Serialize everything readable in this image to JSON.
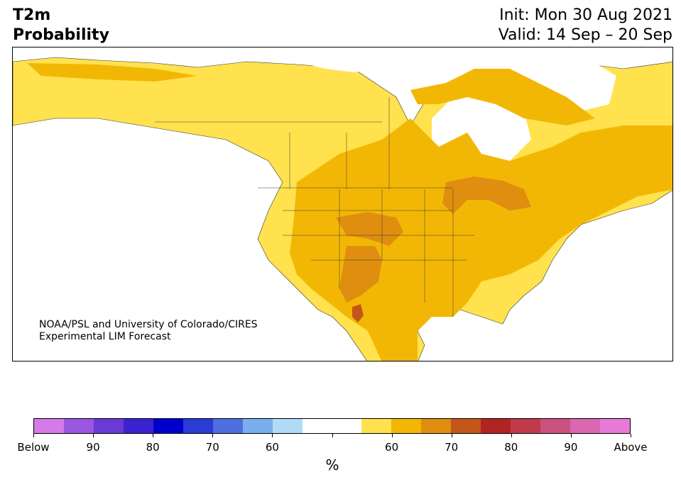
{
  "title": {
    "left_line1": "T2m",
    "left_line2": "Probability",
    "right_line1": "Init: Mon 30 Aug 2021",
    "right_line2": "Valid: 14 Sep – 20 Sep"
  },
  "credit": {
    "line1": "NOAA/PSL and University of Colorado/CIRES",
    "line2": "Experimental LIM Forecast"
  },
  "colorbar": {
    "unit": "%",
    "colors": [
      "#d57ae8",
      "#9a57e0",
      "#6a3ad6",
      "#3b22d0",
      "#0000cc",
      "#2a3bd6",
      "#4d6fe0",
      "#7aaeef",
      "#b0dcf8",
      "#ffffff",
      "#ffffff",
      "#ffe24d",
      "#f2b705",
      "#df8e10",
      "#c5561a",
      "#b12424",
      "#c23a4c",
      "#cc5080",
      "#db67b1",
      "#e97ad8"
    ],
    "labels": [
      "Below",
      "90",
      "80",
      "70",
      "60",
      "",
      "60",
      "70",
      "80",
      "90",
      "Above"
    ]
  },
  "map": {
    "fill_colors": {
      "p55_60": "#ffe24d",
      "p60_65": "#f2b705",
      "p65_70": "#df8e10",
      "p70_75": "#c5561a"
    }
  }
}
